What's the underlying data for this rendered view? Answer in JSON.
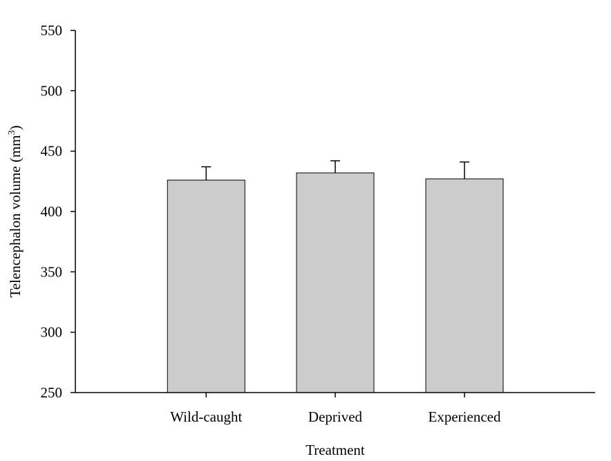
{
  "chart_data": {
    "type": "bar",
    "categories": [
      "Wild-caught",
      "Deprived",
      "Experienced"
    ],
    "values": [
      426,
      432,
      427
    ],
    "error_upper": [
      437,
      442,
      441
    ],
    "xlabel": "Treatment",
    "ylabel": "Telencephalon volume (mm",
    "ylabel_superscript": "3",
    "ylabel_suffix": ")",
    "ylim": [
      250,
      550
    ],
    "yticks": [
      "250",
      "300",
      "350",
      "400",
      "450",
      "500",
      "550"
    ],
    "grid": false,
    "legend": "none",
    "bar_color": "#cccccc",
    "edge_color": "#000000"
  }
}
